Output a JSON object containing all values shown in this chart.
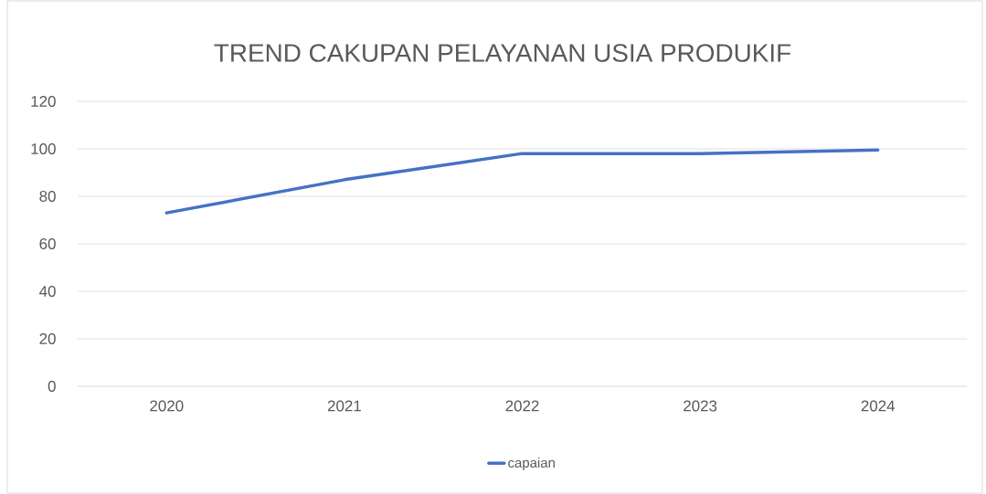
{
  "chart_data": {
    "type": "line",
    "title": "TREND CAKUPAN PELAYANAN USIA PRODUKIF",
    "categories": [
      "2020",
      "2021",
      "2022",
      "2023",
      "2024"
    ],
    "series": [
      {
        "name": "capaian",
        "color": "#4472c4",
        "values": [
          73,
          87,
          98,
          98,
          99.5
        ]
      }
    ],
    "ylim": [
      0,
      120
    ],
    "yticks": [
      0,
      20,
      40,
      60,
      80,
      100,
      120
    ],
    "grid": "y",
    "legend": "bottom",
    "marker": "none",
    "line_style": "solid"
  }
}
